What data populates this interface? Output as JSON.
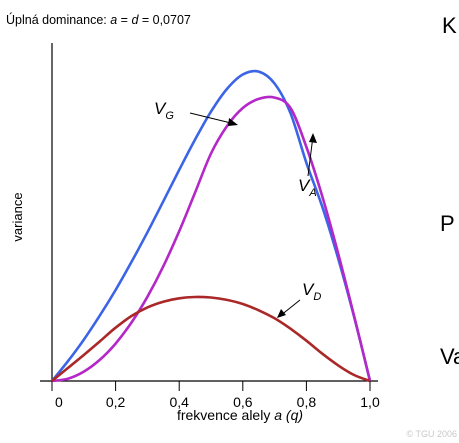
{
  "chart_data": {
    "type": "line",
    "title_prefix": "Úplná dominance: ",
    "title_a": "a",
    "title_eq": " = ",
    "title_d": "d",
    "title_value": " = 0,0707",
    "xlabel_prefix": "frekvence alely ",
    "xlabel_a": "a",
    "xlabel_q": "(q)",
    "ylabel": "variance",
    "xlim": [
      0,
      1
    ],
    "x_ticks": [
      "0",
      "0,2",
      "0,4",
      "0,6",
      "0,8",
      "1,0"
    ],
    "y_ticks_shown": false,
    "series": [
      {
        "key": "VG",
        "label_main": "V",
        "label_sub": "G",
        "color": "#3c64e6",
        "x": [
          0,
          0.05,
          0.1,
          0.15,
          0.2,
          0.25,
          0.3,
          0.35,
          0.4,
          0.45,
          0.5,
          0.55,
          0.6,
          0.65,
          0.7,
          0.75,
          0.8,
          0.85,
          0.9,
          0.95,
          1.0
        ],
        "y": [
          0,
          0.0076,
          0.0159,
          0.0251,
          0.035,
          0.0458,
          0.0572,
          0.0691,
          0.0812,
          0.0929,
          0.1036,
          0.1123,
          0.1179,
          0.119,
          0.1144,
          0.103,
          0.0839,
          0.067,
          0.0471,
          0.0247,
          0
        ]
      },
      {
        "key": "VA",
        "label_main": "V",
        "label_sub": "A",
        "color": "#b428c8",
        "x": [
          0,
          0.05,
          0.1,
          0.15,
          0.2,
          0.25,
          0.3,
          0.35,
          0.4,
          0.45,
          0.5,
          0.55,
          0.6,
          0.65,
          0.7,
          0.75,
          0.8,
          0.85,
          0.9,
          0.95,
          1.0
        ],
        "y": [
          0,
          0.0009,
          0.0036,
          0.0081,
          0.0144,
          0.0225,
          0.0324,
          0.0441,
          0.0576,
          0.0725,
          0.0875,
          0.098,
          0.105,
          0.1085,
          0.109,
          0.105,
          0.09,
          0.071,
          0.049,
          0.025,
          0
        ]
      },
      {
        "key": "VD",
        "label_main": "V",
        "label_sub": "D",
        "color": "#aa2828",
        "x": [
          0,
          0.05,
          0.1,
          0.15,
          0.2,
          0.25,
          0.3,
          0.35,
          0.4,
          0.45,
          0.5,
          0.55,
          0.6,
          0.65,
          0.7,
          0.75,
          0.8,
          0.85,
          0.9,
          0.95,
          1.0
        ],
        "y": [
          0,
          0.005,
          0.01,
          0.0152,
          0.0205,
          0.025,
          0.0283,
          0.0305,
          0.0318,
          0.0323,
          0.0321,
          0.0312,
          0.0296,
          0.0272,
          0.0241,
          0.0201,
          0.0155,
          0.0105,
          0.006,
          0.0023,
          0
        ]
      }
    ]
  },
  "side_letters": [
    "K",
    "P",
    "Va"
  ],
  "copyright": "© TGU 2006"
}
